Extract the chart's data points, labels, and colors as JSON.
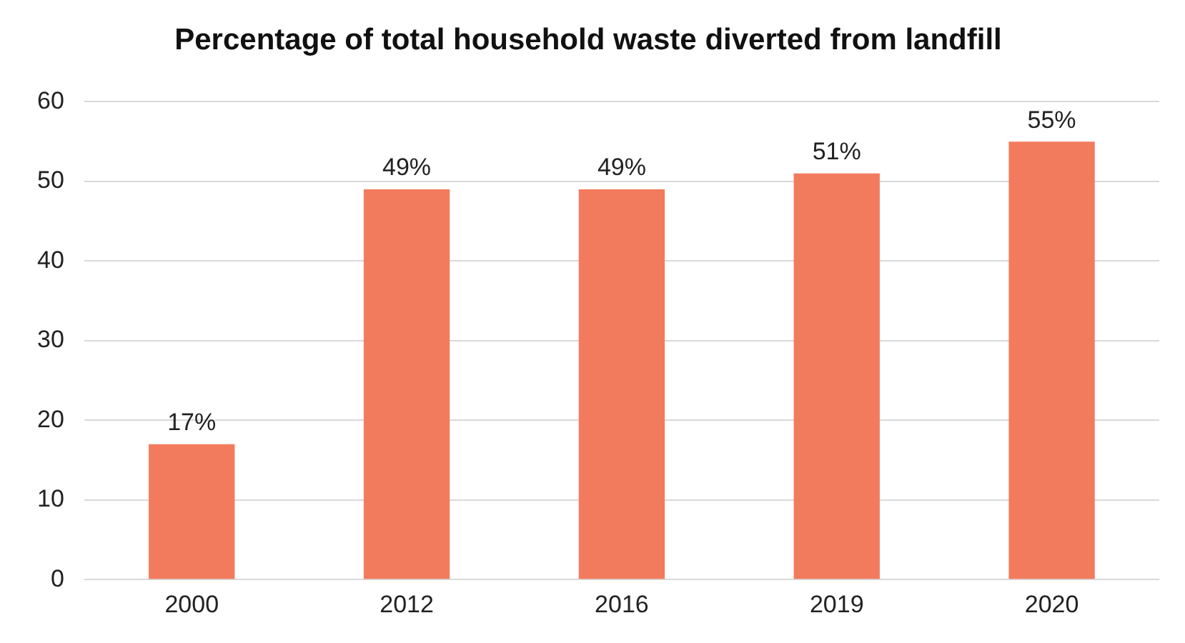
{
  "chart_data": {
    "type": "bar",
    "title": "Percentage of total household waste diverted from landfill",
    "categories": [
      "2000",
      "2012",
      "2016",
      "2019",
      "2020"
    ],
    "values": [
      17,
      49,
      49,
      51,
      55
    ],
    "value_labels": [
      "17%",
      "49%",
      "49%",
      "51%",
      "55%"
    ],
    "color": "#f37b5d",
    "ylim": [
      0,
      60
    ],
    "yticks": [
      0,
      10,
      20,
      30,
      40,
      50,
      60
    ],
    "grid": "y",
    "legend": false
  }
}
